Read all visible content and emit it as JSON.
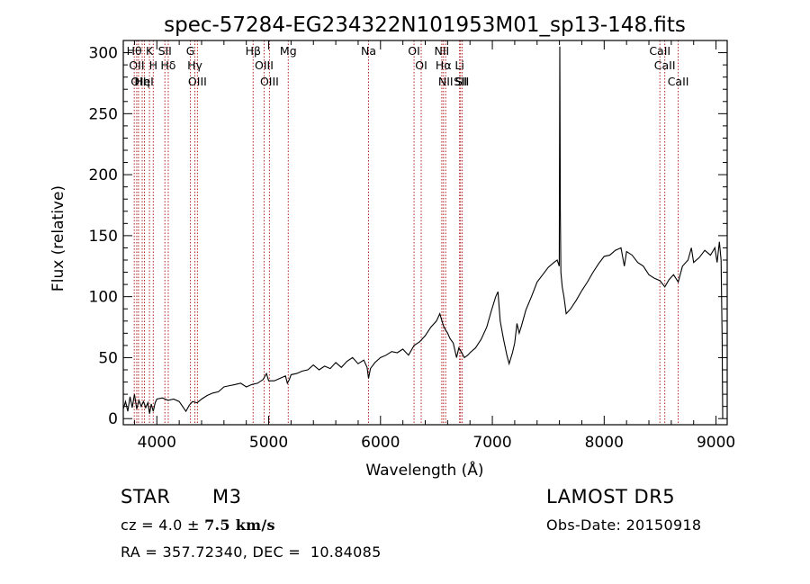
{
  "chart_data": {
    "type": "line",
    "title": "spec-57284-EG234322N101953M01_sp13-148.fits",
    "xlabel": "Wavelength (Å)",
    "ylabel": "Flux (relative)",
    "xlim": [
      3700,
      9100
    ],
    "ylim": [
      -5,
      310
    ],
    "xticks": [
      4000,
      5000,
      6000,
      7000,
      8000,
      9000
    ],
    "yticks": [
      0,
      50,
      100,
      150,
      200,
      250,
      300
    ],
    "grid": false,
    "line_color": "#000000",
    "marker_color": "#b22222",
    "series": [
      {
        "values": [
          {
            "x": 3700,
            "y": 8
          },
          {
            "x": 3720,
            "y": 14
          },
          {
            "x": 3740,
            "y": 6
          },
          {
            "x": 3760,
            "y": 18
          },
          {
            "x": 3780,
            "y": 9
          },
          {
            "x": 3800,
            "y": 20
          },
          {
            "x": 3820,
            "y": 8
          },
          {
            "x": 3840,
            "y": 15
          },
          {
            "x": 3860,
            "y": 10
          },
          {
            "x": 3880,
            "y": 14
          },
          {
            "x": 3900,
            "y": 9
          },
          {
            "x": 3920,
            "y": 13
          },
          {
            "x": 3935,
            "y": 4
          },
          {
            "x": 3950,
            "y": 12
          },
          {
            "x": 3968,
            "y": 6
          },
          {
            "x": 3985,
            "y": 13
          },
          {
            "x": 4000,
            "y": 16
          },
          {
            "x": 4050,
            "y": 17
          },
          {
            "x": 4100,
            "y": 15
          },
          {
            "x": 4150,
            "y": 16
          },
          {
            "x": 4200,
            "y": 14
          },
          {
            "x": 4230,
            "y": 10
          },
          {
            "x": 4260,
            "y": 6
          },
          {
            "x": 4290,
            "y": 11
          },
          {
            "x": 4320,
            "y": 14
          },
          {
            "x": 4360,
            "y": 13
          },
          {
            "x": 4400,
            "y": 16
          },
          {
            "x": 4450,
            "y": 19
          },
          {
            "x": 4500,
            "y": 21
          },
          {
            "x": 4550,
            "y": 22
          },
          {
            "x": 4600,
            "y": 26
          },
          {
            "x": 4650,
            "y": 27
          },
          {
            "x": 4700,
            "y": 28
          },
          {
            "x": 4750,
            "y": 29
          },
          {
            "x": 4800,
            "y": 26
          },
          {
            "x": 4850,
            "y": 28
          },
          {
            "x": 4900,
            "y": 29
          },
          {
            "x": 4950,
            "y": 32
          },
          {
            "x": 4980,
            "y": 37
          },
          {
            "x": 5000,
            "y": 31
          },
          {
            "x": 5050,
            "y": 31
          },
          {
            "x": 5100,
            "y": 33
          },
          {
            "x": 5150,
            "y": 35
          },
          {
            "x": 5167,
            "y": 29
          },
          {
            "x": 5185,
            "y": 32
          },
          {
            "x": 5200,
            "y": 36
          },
          {
            "x": 5250,
            "y": 37
          },
          {
            "x": 5300,
            "y": 39
          },
          {
            "x": 5350,
            "y": 40
          },
          {
            "x": 5400,
            "y": 44
          },
          {
            "x": 5450,
            "y": 40
          },
          {
            "x": 5500,
            "y": 43
          },
          {
            "x": 5550,
            "y": 41
          },
          {
            "x": 5600,
            "y": 46
          },
          {
            "x": 5650,
            "y": 42
          },
          {
            "x": 5700,
            "y": 47
          },
          {
            "x": 5750,
            "y": 50
          },
          {
            "x": 5800,
            "y": 45
          },
          {
            "x": 5850,
            "y": 48
          },
          {
            "x": 5880,
            "y": 42
          },
          {
            "x": 5893,
            "y": 33
          },
          {
            "x": 5910,
            "y": 41
          },
          {
            "x": 5950,
            "y": 46
          },
          {
            "x": 6000,
            "y": 50
          },
          {
            "x": 6050,
            "y": 52
          },
          {
            "x": 6100,
            "y": 55
          },
          {
            "x": 6150,
            "y": 54
          },
          {
            "x": 6200,
            "y": 57
          },
          {
            "x": 6250,
            "y": 52
          },
          {
            "x": 6300,
            "y": 60
          },
          {
            "x": 6350,
            "y": 63
          },
          {
            "x": 6400,
            "y": 68
          },
          {
            "x": 6450,
            "y": 75
          },
          {
            "x": 6500,
            "y": 80
          },
          {
            "x": 6530,
            "y": 86
          },
          {
            "x": 6550,
            "y": 80
          },
          {
            "x": 6563,
            "y": 76
          },
          {
            "x": 6580,
            "y": 73
          },
          {
            "x": 6600,
            "y": 70
          },
          {
            "x": 6620,
            "y": 66
          },
          {
            "x": 6650,
            "y": 62
          },
          {
            "x": 6680,
            "y": 50
          },
          {
            "x": 6700,
            "y": 58
          },
          {
            "x": 6720,
            "y": 55
          },
          {
            "x": 6750,
            "y": 50
          },
          {
            "x": 6780,
            "y": 52
          },
          {
            "x": 6800,
            "y": 54
          },
          {
            "x": 6850,
            "y": 58
          },
          {
            "x": 6900,
            "y": 65
          },
          {
            "x": 6950,
            "y": 75
          },
          {
            "x": 6990,
            "y": 88
          },
          {
            "x": 7030,
            "y": 100
          },
          {
            "x": 7050,
            "y": 104
          },
          {
            "x": 7070,
            "y": 80
          },
          {
            "x": 7100,
            "y": 65
          },
          {
            "x": 7130,
            "y": 52
          },
          {
            "x": 7150,
            "y": 45
          },
          {
            "x": 7180,
            "y": 54
          },
          {
            "x": 7200,
            "y": 62
          },
          {
            "x": 7220,
            "y": 78
          },
          {
            "x": 7240,
            "y": 70
          },
          {
            "x": 7260,
            "y": 76
          },
          {
            "x": 7300,
            "y": 89
          },
          {
            "x": 7350,
            "y": 100
          },
          {
            "x": 7400,
            "y": 112
          },
          {
            "x": 7450,
            "y": 118
          },
          {
            "x": 7500,
            "y": 124
          },
          {
            "x": 7550,
            "y": 128
          },
          {
            "x": 7580,
            "y": 130
          },
          {
            "x": 7598,
            "y": 125
          },
          {
            "x": 7603,
            "y": 305
          },
          {
            "x": 7608,
            "y": 170
          },
          {
            "x": 7613,
            "y": 120
          },
          {
            "x": 7625,
            "y": 108
          },
          {
            "x": 7640,
            "y": 100
          },
          {
            "x": 7660,
            "y": 86
          },
          {
            "x": 7700,
            "y": 90
          },
          {
            "x": 7750,
            "y": 97
          },
          {
            "x": 7800,
            "y": 105
          },
          {
            "x": 7850,
            "y": 112
          },
          {
            "x": 7900,
            "y": 120
          },
          {
            "x": 7950,
            "y": 127
          },
          {
            "x": 8000,
            "y": 133
          },
          {
            "x": 8050,
            "y": 134
          },
          {
            "x": 8100,
            "y": 138
          },
          {
            "x": 8150,
            "y": 140
          },
          {
            "x": 8180,
            "y": 125
          },
          {
            "x": 8200,
            "y": 137
          },
          {
            "x": 8250,
            "y": 134
          },
          {
            "x": 8300,
            "y": 128
          },
          {
            "x": 8350,
            "y": 125
          },
          {
            "x": 8400,
            "y": 118
          },
          {
            "x": 8450,
            "y": 115
          },
          {
            "x": 8500,
            "y": 113
          },
          {
            "x": 8542,
            "y": 108
          },
          {
            "x": 8580,
            "y": 114
          },
          {
            "x": 8620,
            "y": 118
          },
          {
            "x": 8662,
            "y": 112
          },
          {
            "x": 8700,
            "y": 125
          },
          {
            "x": 8750,
            "y": 130
          },
          {
            "x": 8780,
            "y": 140
          },
          {
            "x": 8800,
            "y": 128
          },
          {
            "x": 8850,
            "y": 132
          },
          {
            "x": 8900,
            "y": 138
          },
          {
            "x": 8950,
            "y": 134
          },
          {
            "x": 8990,
            "y": 140
          },
          {
            "x": 9010,
            "y": 128
          },
          {
            "x": 9030,
            "y": 145
          },
          {
            "x": 9045,
            "y": 130
          },
          {
            "x": 9055,
            "y": 65
          },
          {
            "x": 9060,
            "y": 0
          }
        ]
      }
    ],
    "lines": [
      {
        "x": 3798,
        "labels": [
          "Hθ"
        ]
      },
      {
        "x": 3820,
        "labels": [
          "OII"
        ]
      },
      {
        "x": 3836,
        "labels": [
          "OII"
        ]
      },
      {
        "x": 3869,
        "labels": [
          "Hη"
        ]
      },
      {
        "x": 3889,
        "labels": [
          "HeI"
        ]
      },
      {
        "x": 3934,
        "labels": [
          "K"
        ]
      },
      {
        "x": 3968,
        "labels": [
          "H"
        ]
      },
      {
        "x": 4072,
        "labels": [
          "SII"
        ]
      },
      {
        "x": 4102,
        "labels": [
          "Hδ"
        ]
      },
      {
        "x": 4300,
        "labels": [
          "G"
        ]
      },
      {
        "x": 4340,
        "labels": [
          "Hγ"
        ]
      },
      {
        "x": 4363,
        "labels": [
          "OIII"
        ]
      },
      {
        "x": 4861,
        "labels": [
          "Hβ"
        ]
      },
      {
        "x": 4959,
        "labels": [
          "OIII"
        ]
      },
      {
        "x": 5007,
        "labels": [
          "OIII"
        ]
      },
      {
        "x": 5175,
        "labels": [
          "Mg"
        ]
      },
      {
        "x": 5893,
        "labels": [
          "Na"
        ]
      },
      {
        "x": 6300,
        "labels": [
          "OI"
        ]
      },
      {
        "x": 6364,
        "labels": [
          "OI"
        ]
      },
      {
        "x": 6548,
        "labels": [
          "NII"
        ]
      },
      {
        "x": 6563,
        "labels": [
          "Hα"
        ]
      },
      {
        "x": 6583,
        "labels": [
          "NII"
        ]
      },
      {
        "x": 6707,
        "labels": [
          "Li"
        ]
      },
      {
        "x": 6716,
        "labels": [
          "SII"
        ]
      },
      {
        "x": 6731,
        "labels": [
          "SII"
        ]
      },
      {
        "x": 8498,
        "labels": [
          "CaII"
        ]
      },
      {
        "x": 8542,
        "labels": [
          "CaII"
        ]
      },
      {
        "x": 8662,
        "labels": [
          "CaII"
        ]
      }
    ]
  },
  "info": {
    "object_class": "STAR",
    "subclass": "M3",
    "survey": "LAMOST DR5",
    "cz_prefix": "cz = 4.0 ± ",
    "cz_err": "7.5",
    "cz_unit": " km/s",
    "obs_date": "Obs-Date: 20150918",
    "coords": "RA = 357.72340, DEC =  10.84085"
  }
}
